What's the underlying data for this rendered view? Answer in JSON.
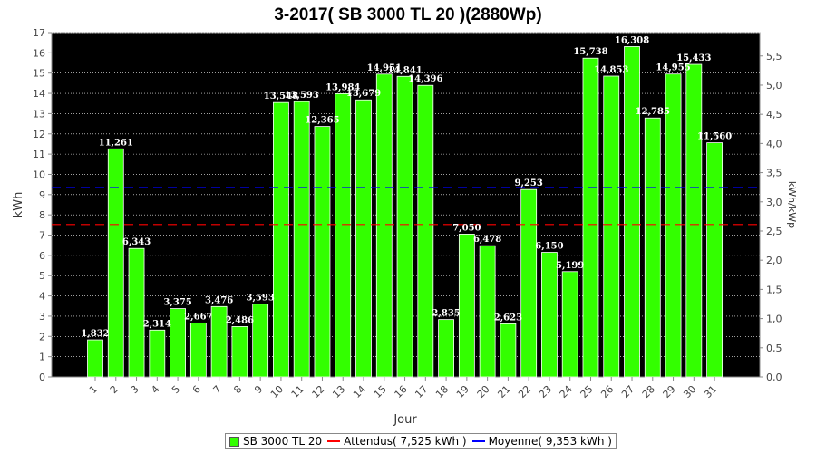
{
  "chart_data": {
    "type": "bar",
    "title": "3-2017( SB 3000 TL 20 )(2880Wp)",
    "xlabel": "Jour",
    "ylabel": "kWh",
    "y2label": "kWh/kWp",
    "ylim": [
      0,
      17
    ],
    "y2lim": [
      0,
      5.9
    ],
    "yticks": [
      "0",
      "1",
      "2",
      "3",
      "4",
      "5",
      "6",
      "7",
      "8",
      "9",
      "10",
      "11",
      "12",
      "13",
      "14",
      "15",
      "16",
      "17"
    ],
    "y2ticks": [
      "0,0",
      "0,5",
      "1,0",
      "1,5",
      "2,0",
      "2,5",
      "3,0",
      "3,5",
      "4,0",
      "4,5",
      "5,0",
      "5,5"
    ],
    "grid": true,
    "legend_position": "bottom",
    "categories": [
      "1",
      "2",
      "3",
      "4",
      "5",
      "6",
      "7",
      "8",
      "9",
      "10",
      "11",
      "12",
      "13",
      "14",
      "15",
      "16",
      "17",
      "18",
      "19",
      "20",
      "21",
      "22",
      "23",
      "24",
      "25",
      "26",
      "27",
      "28",
      "29",
      "30",
      "31"
    ],
    "series": [
      {
        "name": "SB 3000 TL 20",
        "color": "#33ff00",
        "values": [
          1.832,
          11.261,
          6.343,
          2.314,
          3.375,
          2.667,
          3.476,
          2.486,
          3.593,
          13.548,
          13.593,
          12.365,
          13.984,
          13.679,
          14.951,
          14.841,
          14.396,
          2.835,
          7.05,
          6.478,
          2.623,
          9.253,
          6.15,
          5.199,
          15.738,
          14.853,
          16.308,
          12.785,
          14.955,
          15.433,
          11.56
        ],
        "labels": [
          "1,832",
          "11,261",
          "6,343",
          "2,314",
          "3,375",
          "2,667",
          "3,476",
          "2,486",
          "3,593",
          "13,548",
          "13,593",
          "12,365",
          "13,984",
          "13,679",
          "14,951",
          "14,841",
          "14,396",
          "2,835",
          "7,050",
          "6,478",
          "2,623",
          "9,253",
          "6,150",
          "5,199",
          "15,738",
          "14,853",
          "16,308",
          "12,785",
          "14,955",
          "15,433",
          "11,560"
        ]
      }
    ],
    "reference_lines": [
      {
        "name": "Attendus( 7,525 kWh )",
        "value": 7.525,
        "color": "#ff0000"
      },
      {
        "name": "Moyenne( 9,353 kWh )",
        "value": 9.353,
        "color": "#0000ff"
      }
    ]
  }
}
